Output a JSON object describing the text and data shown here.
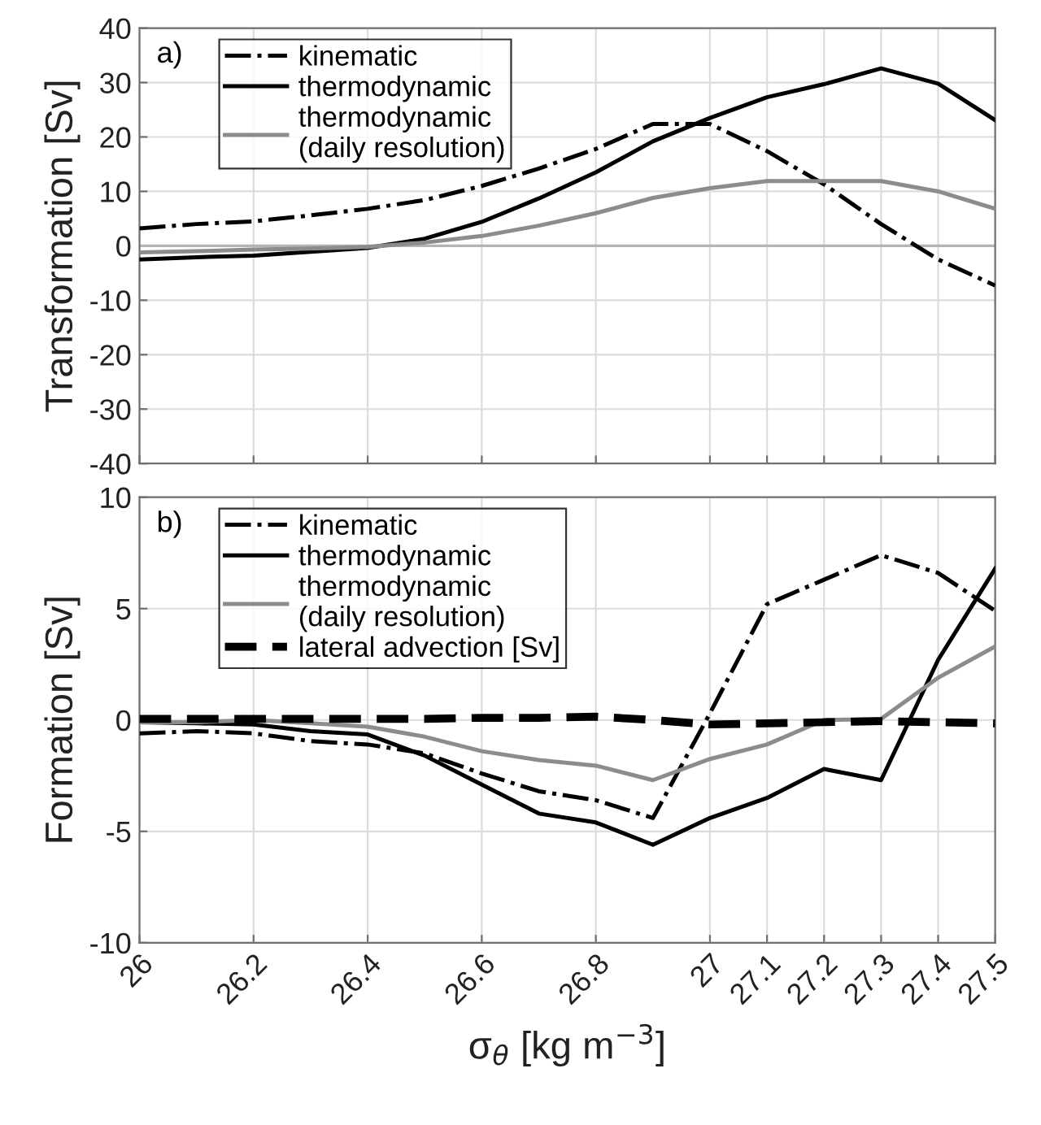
{
  "chart_data": [
    {
      "type": "line",
      "ylabel": "Transformation [Sv]",
      "annotations": [
        "a)"
      ],
      "x": [
        26,
        26.1,
        26.2,
        26.3,
        26.4,
        26.5,
        26.6,
        26.7,
        26.8,
        26.9,
        27.0,
        27.1,
        27.2,
        27.3,
        27.4,
        27.5
      ],
      "series": [
        {
          "name": "kinematic",
          "color": "#000000",
          "line_style": "dashdot",
          "values": [
            3.2,
            4.0,
            4.5,
            5.6,
            6.8,
            8.4,
            11,
            14.2,
            17.8,
            22.4,
            22.4,
            17.4,
            11.3,
            4,
            -2.5,
            -7.3
          ]
        },
        {
          "name": "thermodynamic",
          "color": "#000000",
          "line_style": "solid",
          "values": [
            -2.5,
            -2.1,
            -1.8,
            -1.1,
            -0.4,
            1.3,
            4.4,
            8.7,
            13.5,
            19.2,
            23.5,
            27.3,
            29.7,
            32.6,
            29.8,
            23.1
          ]
        },
        {
          "name": "thermodynamic\n(daily resolution)",
          "color": "#8c8c8c",
          "line_style": "solid",
          "values": [
            -1.2,
            -1,
            -0.7,
            -0.5,
            -0.2,
            0.6,
            1.8,
            3.7,
            6,
            8.8,
            10.6,
            11.9,
            11.9,
            11.9,
            10,
            6.8
          ]
        }
      ],
      "xlim": [
        26,
        27.5
      ],
      "xticks": [
        26,
        26.2,
        26.4,
        26.6,
        26.8,
        27,
        27.1,
        27.2,
        27.3,
        27.4,
        27.5
      ],
      "ylim": [
        -40,
        40
      ],
      "yticks": [
        -40,
        -30,
        -20,
        -10,
        0,
        10,
        20,
        30,
        40
      ],
      "ref_lines": [
        {
          "axis": "y",
          "value": 0,
          "color": "#b4b4b4"
        }
      ],
      "tick_labels": "y",
      "grid": true,
      "legend": "top left",
      "marker": "none"
    },
    {
      "type": "line",
      "ylabel": "Formation [Sv]",
      "xlabel": "σ$_{θ}$ [kg m$^{−3}$]",
      "annotations": [
        "b)"
      ],
      "x": [
        26,
        26.1,
        26.2,
        26.3,
        26.4,
        26.5,
        26.6,
        26.7,
        26.8,
        26.9,
        27.0,
        27.1,
        27.2,
        27.3,
        27.4,
        27.5
      ],
      "series": [
        {
          "name": "kinematic",
          "color": "#000000",
          "line_style": "dashdot",
          "values": [
            -0.6,
            -0.5,
            -0.6,
            -0.95,
            -1.1,
            -1.5,
            -2.4,
            -3.2,
            -3.6,
            -4.4,
            0.3,
            5.2,
            6.3,
            7.4,
            6.6,
            4.9
          ]
        },
        {
          "name": "thermodynamic",
          "color": "#000000",
          "line_style": "solid",
          "values": [
            -0.1,
            -0.15,
            -0.2,
            -0.5,
            -0.65,
            -1.6,
            -2.9,
            -4.2,
            -4.6,
            -5.6,
            -4.4,
            -3.5,
            -2.2,
            -2.7,
            2.7,
            6.8
          ]
        },
        {
          "name": "thermodynamic\n(daily resolution)",
          "color": "#8c8c8c",
          "line_style": "solid",
          "values": [
            -0.1,
            -0.1,
            0,
            -0.15,
            -0.3,
            -0.75,
            -1.4,
            -1.8,
            -2.05,
            -2.7,
            -1.75,
            -1.1,
            0,
            0.05,
            1.9,
            3.3
          ]
        },
        {
          "name": "lateral advection [Sv]",
          "color": "#000000",
          "line_style": "dashed",
          "values": [
            0.05,
            0.05,
            0.05,
            0.05,
            0.05,
            0.05,
            0.1,
            0.1,
            0.15,
            0,
            -0.2,
            -0.15,
            -0.1,
            -0.05,
            -0.1,
            -0.15
          ]
        }
      ],
      "xlim": [
        26,
        27.5
      ],
      "xticks": [
        26,
        26.2,
        26.4,
        26.6,
        26.8,
        27,
        27.1,
        27.2,
        27.3,
        27.4,
        27.5
      ],
      "ylim": [
        -10,
        10
      ],
      "yticks": [
        -10,
        -5,
        0,
        5,
        10
      ],
      "grid": true,
      "legend": "top left",
      "marker": "none"
    }
  ]
}
